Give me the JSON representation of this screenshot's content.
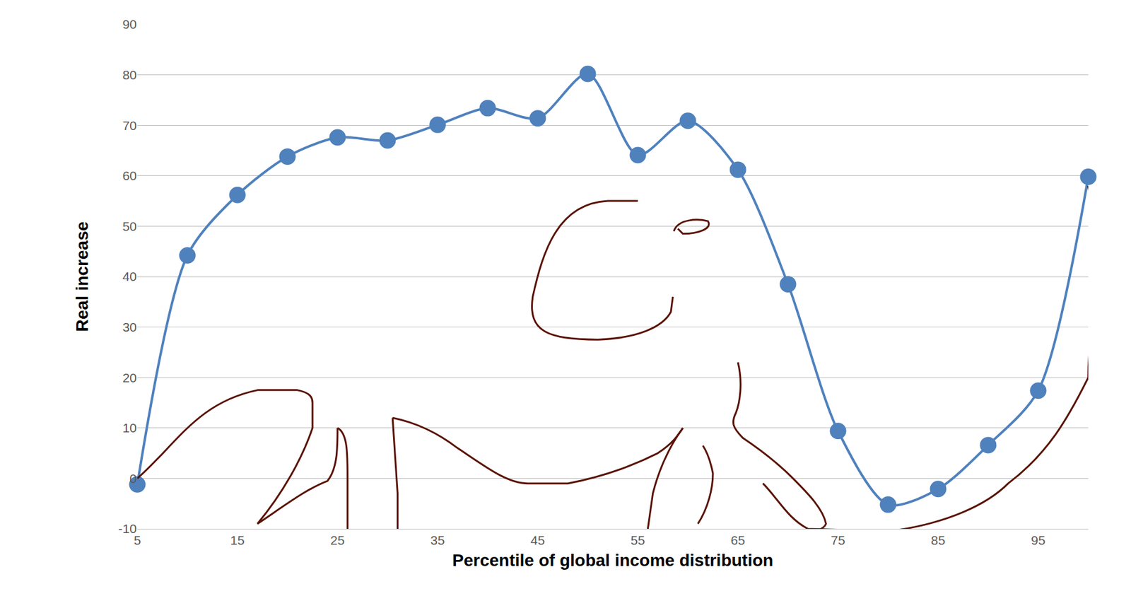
{
  "chart_data": {
    "type": "line",
    "x": [
      5,
      10,
      15,
      20,
      25,
      30,
      35,
      40,
      45,
      50,
      55,
      60,
      65,
      70,
      75,
      80,
      85,
      90,
      95,
      100
    ],
    "values": [
      -1.2,
      44.2,
      56.2,
      63.8,
      67.6,
      67,
      70.1,
      73.4,
      71.4,
      80.2,
      64.1,
      70.9,
      61.2,
      38.5,
      9.4,
      -5.2,
      -2.1,
      6.6,
      17.4,
      59.8
    ],
    "xlabel": "Percentile of global income distribution",
    "ylabel": "Real increase",
    "xlim": [
      5,
      100
    ],
    "xticks": [
      5,
      15,
      25,
      35,
      45,
      55,
      65,
      75,
      85,
      95
    ],
    "ylim": [
      -10,
      90
    ],
    "yticks": [
      -10,
      0,
      10,
      20,
      30,
      40,
      50,
      60,
      70,
      80,
      90
    ],
    "grid": true,
    "color": "#4f81bd",
    "marker": "circle",
    "line_style": "solid"
  }
}
